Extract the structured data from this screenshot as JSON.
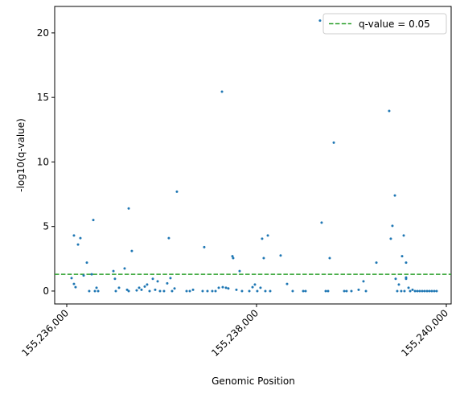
{
  "chart_data": {
    "type": "scatter",
    "xlabel": "Genomic Position",
    "ylabel": "-log10(q-value)",
    "color": "#1f77b4",
    "x": [
      155236051,
      155236076,
      155236076,
      155236093,
      155236119,
      155236144,
      155236178,
      155236212,
      155236237,
      155236263,
      155236280,
      155236297,
      155236314,
      155236331,
      155236492,
      155236508,
      155236517,
      155236551,
      155236610,
      155236636,
      155236653,
      155236653,
      155236686,
      155236737,
      155236763,
      155236788,
      155236822,
      155236847,
      155236873,
      155236907,
      155236932,
      155236958,
      155236983,
      155237025,
      155237059,
      155237076,
      155237093,
      155237110,
      155237136,
      155237161,
      155237263,
      155237297,
      155237331,
      155237432,
      155237449,
      155237483,
      155237534,
      155237568,
      155237602,
      155237636,
      155237644,
      155237678,
      155237703,
      155237746,
      155237754,
      155237788,
      155237822,
      155237847,
      155237924,
      155237958,
      155237983,
      155238008,
      155238042,
      155238059,
      155238076,
      155238093,
      155238119,
      155238144,
      155238254,
      155238322,
      155238381,
      155238492,
      155238517,
      155238669,
      155238686,
      155238729,
      155238754,
      155238771,
      155238814,
      155238924,
      155238949,
      155239000,
      155239076,
      155239127,
      155239153,
      155239263,
      155239398,
      155239415,
      155239432,
      155239458,
      155239466,
      155239483,
      155239500,
      155239525,
      155239534,
      155239551,
      155239559,
      155239576,
      155239576,
      155239576,
      155239602,
      155239619,
      155239644,
      155239670,
      155239695,
      155239720,
      155239746,
      155239771,
      155239797,
      155239822,
      155239847,
      155239873,
      155239898
    ],
    "values": [
      1.0,
      4.3,
      0.55,
      0.3,
      3.6,
      4.1,
      1.2,
      2.2,
      0,
      1.3,
      5.5,
      0,
      0.25,
      0,
      1.55,
      0.95,
      0,
      0.25,
      1.75,
      0.1,
      6.4,
      0,
      3.1,
      0.05,
      0.25,
      0.1,
      0.35,
      0.5,
      0,
      0.95,
      0.1,
      0.75,
      0,
      0,
      0.6,
      4.1,
      1.0,
      0,
      0.2,
      7.7,
      0,
      0,
      0.1,
      0,
      3.4,
      0,
      0,
      0,
      0.25,
      15.45,
      0.3,
      0.25,
      0.2,
      2.7,
      2.55,
      0.1,
      1.55,
      0,
      0,
      0.3,
      0.5,
      0,
      0.25,
      4.05,
      2.55,
      0,
      4.3,
      0,
      2.75,
      0.55,
      0,
      0,
      0,
      20.95,
      5.3,
      0,
      0,
      2.55,
      11.5,
      0,
      0,
      0,
      0.1,
      0.75,
      0,
      2.2,
      13.95,
      4.05,
      5.05,
      7.4,
      0.95,
      0,
      0.5,
      0,
      2.7,
      4.3,
      0,
      2.2,
      1.05,
      0.95,
      0.25,
      0,
      0.1,
      0,
      0,
      0,
      0,
      0,
      0,
      0,
      0,
      0,
      0
    ],
    "xlim": [
      155235873,
      155240051
    ],
    "ylim": [
      -1.0,
      22.05
    ],
    "xticks": [
      {
        "value": 155236000,
        "label": "155,236,000"
      },
      {
        "value": 155238000,
        "label": "155,238,000"
      },
      {
        "value": 155240000,
        "label": "155,240,000"
      }
    ],
    "yticks": [
      0,
      5,
      10,
      15,
      20
    ],
    "threshold": {
      "value": 1.30103,
      "name": "q-value = 0.05",
      "color": "#2ca02c"
    },
    "legend": "upper right"
  }
}
